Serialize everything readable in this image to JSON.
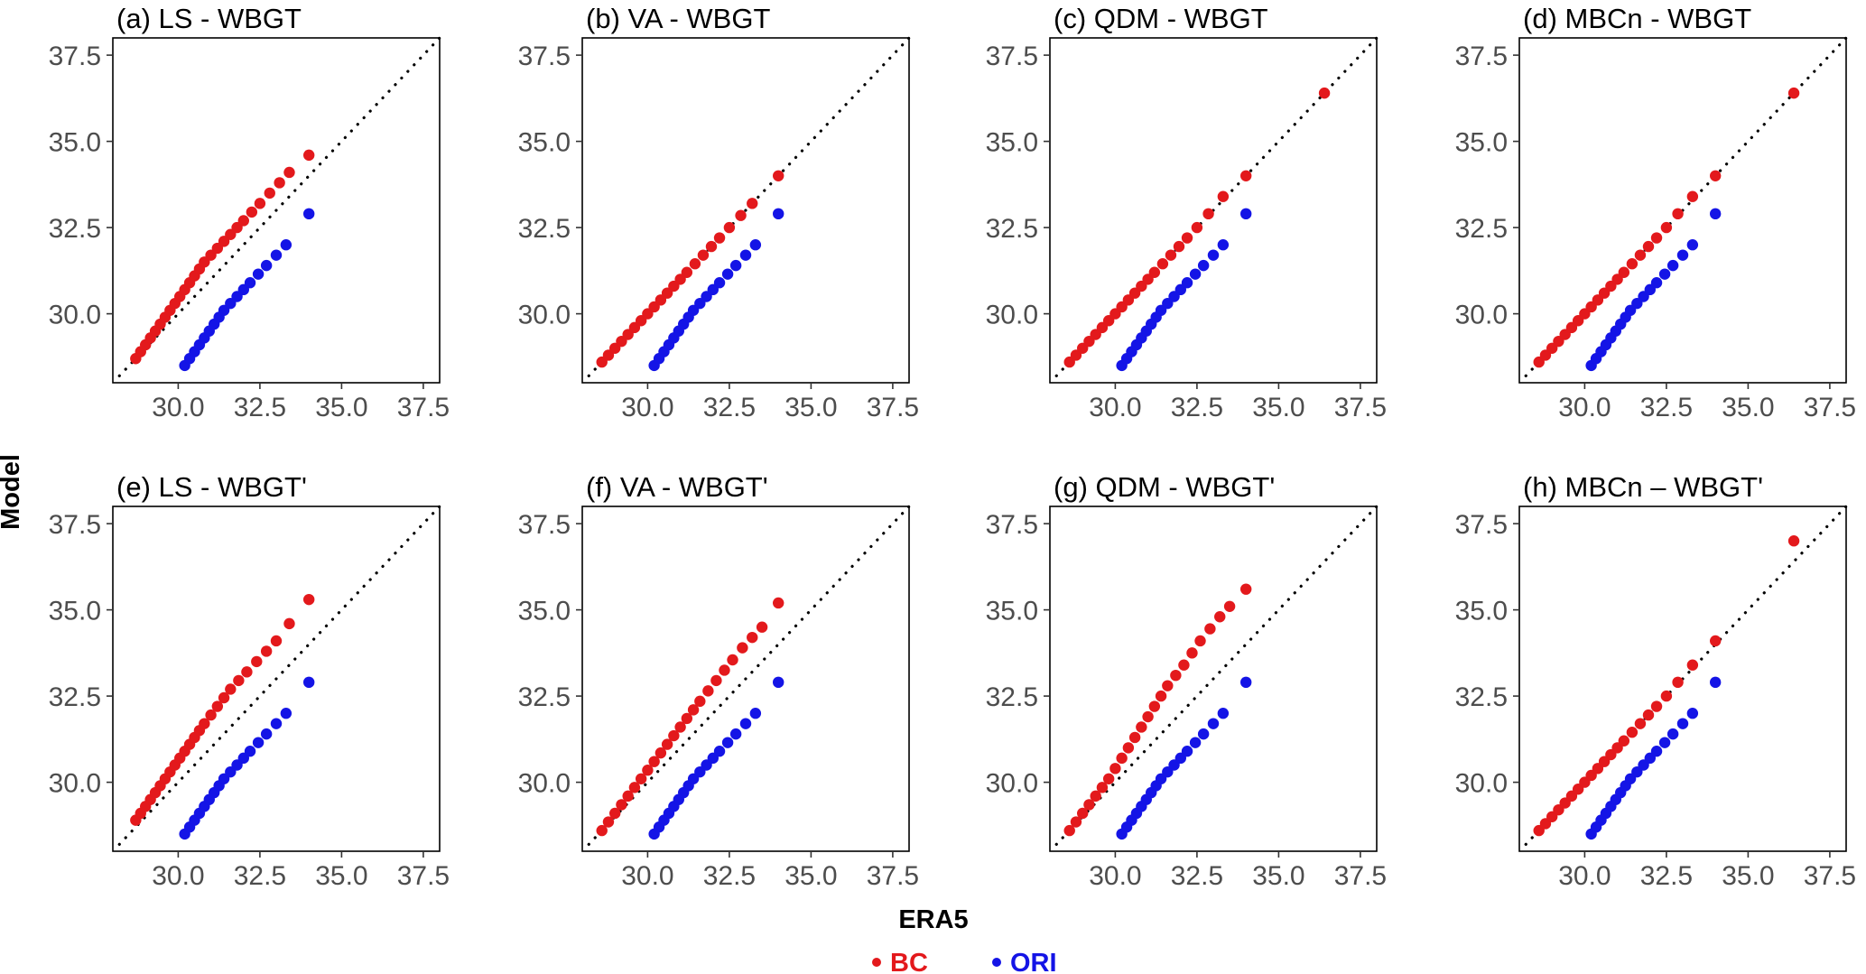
{
  "figure": {
    "ylabel": "Model",
    "xlabel": "ERA5",
    "legend": [
      {
        "label": "BC",
        "color": "#e3191c"
      },
      {
        "label": "ORI",
        "color": "#1414e6"
      }
    ]
  },
  "chart_data": {
    "type": "scatter",
    "xlabel": "ERA5",
    "ylabel": "Model",
    "xlim": [
      28.0,
      38.0
    ],
    "ylim": [
      28.0,
      38.0
    ],
    "xticks": [
      "30.0",
      "32.5",
      "35.0",
      "37.5"
    ],
    "yticks": [
      "30.0",
      "32.5",
      "35.0",
      "37.5"
    ],
    "reference_line": "1:1 dotted",
    "legend_position": "bottom",
    "panels": [
      {
        "title": "(a) LS - WBGT",
        "series": [
          {
            "name": "BC",
            "x": [
              28.7,
              28.85,
              29.0,
              29.15,
              29.3,
              29.45,
              29.6,
              29.75,
              29.9,
              30.05,
              30.2,
              30.35,
              30.5,
              30.65,
              30.8,
              31.0,
              31.2,
              31.4,
              31.6,
              31.8,
              32.0,
              32.25,
              32.5,
              32.8,
              33.1,
              33.4,
              34.0
            ],
            "y": [
              28.7,
              28.9,
              29.1,
              29.3,
              29.5,
              29.7,
              29.9,
              30.1,
              30.3,
              30.5,
              30.7,
              30.9,
              31.1,
              31.3,
              31.5,
              31.7,
              31.9,
              32.1,
              32.3,
              32.5,
              32.7,
              32.95,
              33.2,
              33.5,
              33.8,
              34.1,
              34.6
            ]
          },
          {
            "name": "ORI",
            "x": [
              30.2,
              30.35,
              30.5,
              30.65,
              30.8,
              30.95,
              31.1,
              31.25,
              31.4,
              31.6,
              31.8,
              32.0,
              32.2,
              32.45,
              32.7,
              33.0,
              33.3,
              34.0
            ],
            "y": [
              28.5,
              28.7,
              28.9,
              29.1,
              29.3,
              29.5,
              29.7,
              29.9,
              30.1,
              30.3,
              30.5,
              30.7,
              30.9,
              31.15,
              31.4,
              31.7,
              32.0,
              32.9
            ]
          }
        ]
      },
      {
        "title": "(b) VA - WBGT",
        "series": [
          {
            "name": "BC",
            "x": [
              28.6,
              28.8,
              29.0,
              29.2,
              29.4,
              29.6,
              29.8,
              30.0,
              30.2,
              30.4,
              30.6,
              30.8,
              31.0,
              31.2,
              31.45,
              31.7,
              31.95,
              32.2,
              32.5,
              32.85,
              33.2,
              34.0
            ],
            "y": [
              28.6,
              28.8,
              29.0,
              29.2,
              29.4,
              29.6,
              29.8,
              30.0,
              30.2,
              30.4,
              30.6,
              30.8,
              31.0,
              31.2,
              31.45,
              31.7,
              31.95,
              32.2,
              32.5,
              32.85,
              33.2,
              34.0
            ]
          },
          {
            "name": "ORI",
            "x": [
              30.2,
              30.35,
              30.5,
              30.65,
              30.8,
              30.95,
              31.1,
              31.25,
              31.4,
              31.6,
              31.8,
              32.0,
              32.2,
              32.45,
              32.7,
              33.0,
              33.3,
              34.0
            ],
            "y": [
              28.5,
              28.7,
              28.9,
              29.1,
              29.3,
              29.5,
              29.7,
              29.9,
              30.1,
              30.3,
              30.5,
              30.7,
              30.9,
              31.15,
              31.4,
              31.7,
              32.0,
              32.9
            ]
          }
        ]
      },
      {
        "title": "(c) QDM - WBGT",
        "series": [
          {
            "name": "BC",
            "x": [
              28.6,
              28.8,
              29.0,
              29.2,
              29.4,
              29.6,
              29.8,
              30.0,
              30.2,
              30.4,
              30.6,
              30.8,
              31.0,
              31.2,
              31.45,
              31.7,
              31.95,
              32.2,
              32.5,
              32.85,
              33.3,
              34.0,
              36.4
            ],
            "y": [
              28.6,
              28.8,
              29.0,
              29.2,
              29.4,
              29.6,
              29.8,
              30.0,
              30.2,
              30.4,
              30.6,
              30.8,
              31.0,
              31.2,
              31.45,
              31.7,
              31.95,
              32.2,
              32.5,
              32.9,
              33.4,
              34.0,
              36.4
            ]
          },
          {
            "name": "ORI",
            "x": [
              30.2,
              30.35,
              30.5,
              30.65,
              30.8,
              30.95,
              31.1,
              31.25,
              31.4,
              31.6,
              31.8,
              32.0,
              32.2,
              32.45,
              32.7,
              33.0,
              33.3,
              34.0
            ],
            "y": [
              28.5,
              28.7,
              28.9,
              29.1,
              29.3,
              29.5,
              29.7,
              29.9,
              30.1,
              30.3,
              30.5,
              30.7,
              30.9,
              31.15,
              31.4,
              31.7,
              32.0,
              32.9
            ]
          }
        ]
      },
      {
        "title": "(d) MBCn - WBGT",
        "series": [
          {
            "name": "BC",
            "x": [
              28.6,
              28.8,
              29.0,
              29.2,
              29.4,
              29.6,
              29.8,
              30.0,
              30.2,
              30.4,
              30.6,
              30.8,
              31.0,
              31.2,
              31.45,
              31.7,
              31.95,
              32.2,
              32.5,
              32.85,
              33.3,
              34.0,
              36.4
            ],
            "y": [
              28.6,
              28.8,
              29.0,
              29.2,
              29.4,
              29.6,
              29.8,
              30.0,
              30.2,
              30.4,
              30.6,
              30.8,
              31.0,
              31.2,
              31.45,
              31.7,
              31.95,
              32.2,
              32.5,
              32.9,
              33.4,
              34.0,
              36.4
            ]
          },
          {
            "name": "ORI",
            "x": [
              30.2,
              30.35,
              30.5,
              30.65,
              30.8,
              30.95,
              31.1,
              31.25,
              31.4,
              31.6,
              31.8,
              32.0,
              32.2,
              32.45,
              32.7,
              33.0,
              33.3,
              34.0
            ],
            "y": [
              28.5,
              28.7,
              28.9,
              29.1,
              29.3,
              29.5,
              29.7,
              29.9,
              30.1,
              30.3,
              30.5,
              30.7,
              30.9,
              31.15,
              31.4,
              31.7,
              32.0,
              32.9
            ]
          }
        ]
      },
      {
        "title": "(e) LS - WBGT'",
        "series": [
          {
            "name": "BC",
            "x": [
              28.7,
              28.85,
              29.0,
              29.15,
              29.3,
              29.45,
              29.6,
              29.75,
              29.9,
              30.05,
              30.2,
              30.35,
              30.5,
              30.65,
              30.8,
              31.0,
              31.2,
              31.4,
              31.6,
              31.85,
              32.1,
              32.4,
              32.7,
              33.0,
              33.4,
              34.0
            ],
            "y": [
              28.9,
              29.1,
              29.3,
              29.5,
              29.7,
              29.9,
              30.1,
              30.3,
              30.5,
              30.7,
              30.9,
              31.1,
              31.3,
              31.5,
              31.7,
              31.95,
              32.2,
              32.45,
              32.7,
              32.95,
              33.2,
              33.5,
              33.8,
              34.1,
              34.6,
              35.3
            ]
          },
          {
            "name": "ORI",
            "x": [
              30.2,
              30.35,
              30.5,
              30.65,
              30.8,
              30.95,
              31.1,
              31.25,
              31.4,
              31.6,
              31.8,
              32.0,
              32.2,
              32.45,
              32.7,
              33.0,
              33.3,
              34.0
            ],
            "y": [
              28.5,
              28.7,
              28.9,
              29.1,
              29.3,
              29.5,
              29.7,
              29.9,
              30.1,
              30.3,
              30.5,
              30.7,
              30.9,
              31.15,
              31.4,
              31.7,
              32.0,
              32.9
            ]
          }
        ]
      },
      {
        "title": "(f) VA - WBGT'",
        "series": [
          {
            "name": "BC",
            "x": [
              28.6,
              28.8,
              29.0,
              29.2,
              29.4,
              29.6,
              29.8,
              30.0,
              30.2,
              30.4,
              30.6,
              30.8,
              31.0,
              31.2,
              31.4,
              31.6,
              31.85,
              32.1,
              32.35,
              32.6,
              32.9,
              33.2,
              33.5,
              34.0
            ],
            "y": [
              28.6,
              28.85,
              29.1,
              29.35,
              29.6,
              29.85,
              30.1,
              30.35,
              30.6,
              30.85,
              31.1,
              31.35,
              31.6,
              31.85,
              32.1,
              32.35,
              32.65,
              32.95,
              33.25,
              33.55,
              33.9,
              34.2,
              34.5,
              35.2
            ]
          },
          {
            "name": "ORI",
            "x": [
              30.2,
              30.35,
              30.5,
              30.65,
              30.8,
              30.95,
              31.1,
              31.25,
              31.4,
              31.6,
              31.8,
              32.0,
              32.2,
              32.45,
              32.7,
              33.0,
              33.3,
              34.0
            ],
            "y": [
              28.5,
              28.7,
              28.9,
              29.1,
              29.3,
              29.5,
              29.7,
              29.9,
              30.1,
              30.3,
              30.5,
              30.7,
              30.9,
              31.15,
              31.4,
              31.7,
              32.0,
              32.9
            ]
          }
        ]
      },
      {
        "title": "(g) QDM - WBGT'",
        "series": [
          {
            "name": "BC",
            "x": [
              28.6,
              28.8,
              29.0,
              29.2,
              29.4,
              29.6,
              29.8,
              30.0,
              30.2,
              30.4,
              30.6,
              30.8,
              31.0,
              31.2,
              31.4,
              31.6,
              31.85,
              32.1,
              32.35,
              32.6,
              32.9,
              33.2,
              33.5,
              34.0
            ],
            "y": [
              28.6,
              28.85,
              29.1,
              29.35,
              29.6,
              29.85,
              30.1,
              30.4,
              30.7,
              31.0,
              31.3,
              31.6,
              31.9,
              32.2,
              32.5,
              32.8,
              33.1,
              33.4,
              33.75,
              34.1,
              34.45,
              34.8,
              35.1,
              35.6
            ]
          },
          {
            "name": "ORI",
            "x": [
              30.2,
              30.35,
              30.5,
              30.65,
              30.8,
              30.95,
              31.1,
              31.25,
              31.4,
              31.6,
              31.8,
              32.0,
              32.2,
              32.45,
              32.7,
              33.0,
              33.3,
              34.0
            ],
            "y": [
              28.5,
              28.7,
              28.9,
              29.1,
              29.3,
              29.5,
              29.7,
              29.9,
              30.1,
              30.3,
              30.5,
              30.7,
              30.9,
              31.15,
              31.4,
              31.7,
              32.0,
              32.9
            ]
          }
        ]
      },
      {
        "title": "(h) MBCn – WBGT'",
        "series": [
          {
            "name": "BC",
            "x": [
              28.6,
              28.8,
              29.0,
              29.2,
              29.4,
              29.6,
              29.8,
              30.0,
              30.2,
              30.4,
              30.6,
              30.8,
              31.0,
              31.2,
              31.45,
              31.7,
              31.95,
              32.2,
              32.5,
              32.85,
              33.3,
              34.0,
              36.4
            ],
            "y": [
              28.6,
              28.8,
              29.0,
              29.2,
              29.4,
              29.6,
              29.8,
              30.0,
              30.2,
              30.4,
              30.6,
              30.8,
              31.0,
              31.2,
              31.45,
              31.7,
              31.95,
              32.2,
              32.5,
              32.9,
              33.4,
              34.1,
              37.0
            ]
          },
          {
            "name": "ORI",
            "x": [
              30.2,
              30.35,
              30.5,
              30.65,
              30.8,
              30.95,
              31.1,
              31.25,
              31.4,
              31.6,
              31.8,
              32.0,
              32.2,
              32.45,
              32.7,
              33.0,
              33.3,
              34.0
            ],
            "y": [
              28.5,
              28.7,
              28.9,
              29.1,
              29.3,
              29.5,
              29.7,
              29.9,
              30.1,
              30.3,
              30.5,
              30.7,
              30.9,
              31.15,
              31.4,
              31.7,
              32.0,
              32.9
            ]
          }
        ]
      }
    ]
  }
}
